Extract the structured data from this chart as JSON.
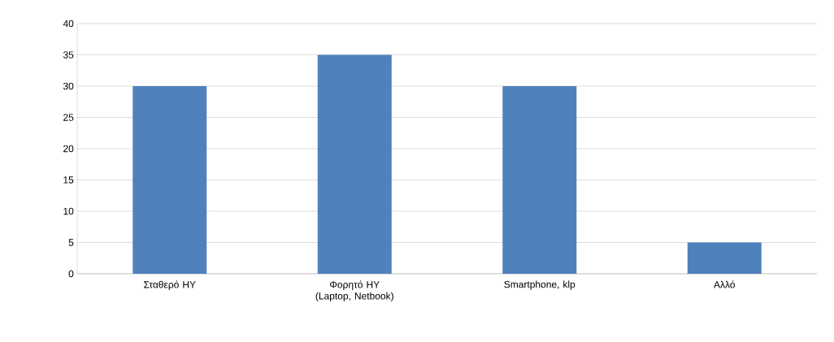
{
  "chart_data": {
    "type": "bar",
    "categories": [
      "Σταθερό ΗΥ",
      "Φορητό ΗΥ (Laptop, Netbook)",
      "Smartphone, klp",
      "Αλλό"
    ],
    "values": [
      30,
      35,
      30,
      5
    ],
    "color": "#4f81bd",
    "ylim": [
      0,
      40
    ],
    "yticks": [
      0,
      5,
      10,
      15,
      20,
      25,
      30,
      35,
      40
    ],
    "grid": "y"
  }
}
